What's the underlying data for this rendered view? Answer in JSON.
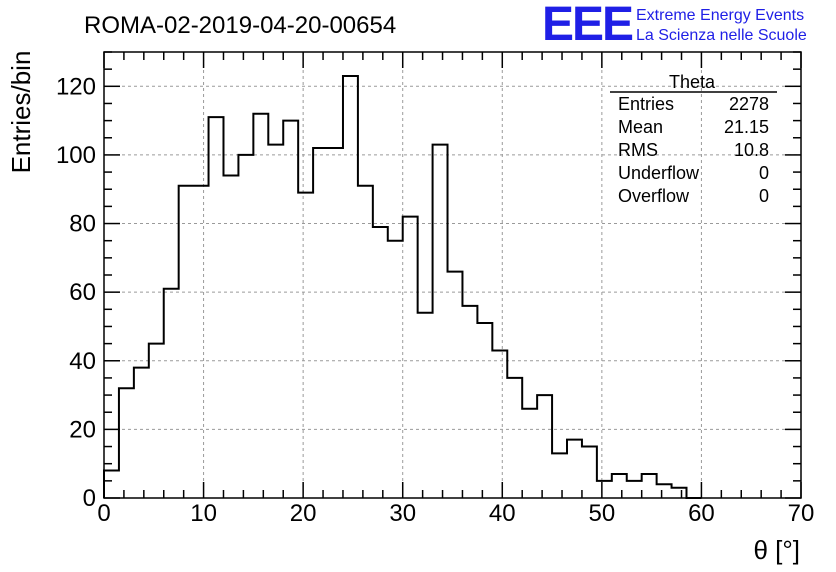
{
  "page": {
    "title": "ROMA-02-2019-04-20-00654",
    "logo": "EEE",
    "logo_line1": "Extreme Energy Events",
    "logo_line2": "La Scienza nelle Scuole"
  },
  "stats": {
    "name": "Theta",
    "rows": [
      {
        "label": "Entries",
        "value": "2278"
      },
      {
        "label": "Mean",
        "value": "21.15"
      },
      {
        "label": "RMS",
        "value": "10.8"
      },
      {
        "label": "Underflow",
        "value": "0"
      },
      {
        "label": "Overflow",
        "value": "0"
      }
    ]
  },
  "chart_data": {
    "type": "histogram",
    "title": "ROMA-02-2019-04-20-00654",
    "xlabel": "θ [°]",
    "ylabel": "Entries/bin",
    "xlim": [
      0,
      70
    ],
    "ylim": [
      0,
      130
    ],
    "bin_width": 1.5,
    "bin_start": 0,
    "values": [
      8,
      32,
      38,
      45,
      61,
      91,
      91,
      111,
      94,
      100,
      112,
      103,
      110,
      89,
      102,
      102,
      123,
      91,
      79,
      75,
      82,
      54,
      103,
      66,
      56,
      51,
      43,
      35,
      26,
      30,
      13,
      17,
      15,
      5,
      7,
      5,
      7,
      4,
      3,
      0
    ],
    "x_ticks": [
      0,
      10,
      20,
      30,
      40,
      50,
      60,
      70
    ],
    "y_ticks": [
      0,
      20,
      40,
      60,
      80,
      100,
      120
    ],
    "grid": true,
    "colors": {
      "line": "#000000",
      "grid": "#9a9a9a",
      "logo": "#1f1fe6"
    }
  }
}
